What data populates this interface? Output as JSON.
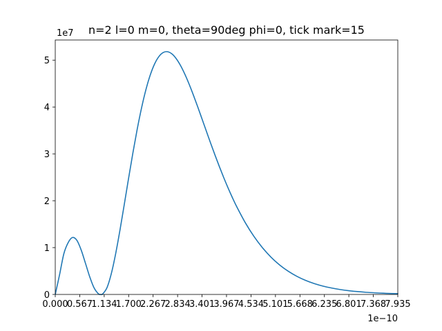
{
  "chart_data": {
    "type": "line",
    "title": "n=2 l=0 m=0, theta=90deg phi=0, tick mark=15",
    "xlabel": "",
    "ylabel": "",
    "x_offset_label": "1e−10",
    "y_offset_label": "1e7",
    "x_scale": 1e-10,
    "y_scale": 10000000.0,
    "xlim": [
      0.0,
      7.935
    ],
    "ylim": [
      0.0,
      5.43
    ],
    "x_ticks": [
      0.0,
      0.567,
      1.134,
      1.7,
      2.267,
      2.834,
      3.401,
      3.967,
      4.534,
      5.101,
      5.668,
      6.235,
      6.801,
      7.368,
      7.935
    ],
    "x_tick_labels": [
      "0.000",
      "0.567",
      "1.134",
      "1.700",
      "2.267",
      "2.834",
      "3.401",
      "3.967",
      "4.534",
      "5.101",
      "5.668",
      "6.235",
      "6.801",
      "7.368",
      "7.935"
    ],
    "y_ticks": [
      0,
      1,
      2,
      3,
      4,
      5
    ],
    "y_tick_labels": [
      "0",
      "1",
      "2",
      "3",
      "4",
      "5"
    ],
    "grid": false,
    "legend": "none",
    "series": [
      {
        "color": "#1f77b4",
        "x": [
          0.0,
          0.1,
          0.2,
          0.3,
          0.4,
          0.5,
          0.6,
          0.7,
          0.8,
          0.9,
          1.0,
          1.058,
          1.1,
          1.2,
          1.3,
          1.4,
          1.5,
          1.6,
          1.7,
          1.8,
          1.9,
          2.0,
          2.1,
          2.2,
          2.3,
          2.4,
          2.5,
          2.6,
          2.7,
          2.8,
          2.9,
          3.0,
          3.1,
          3.2,
          3.3,
          3.4,
          3.5,
          3.6,
          3.7,
          3.8,
          3.9,
          4.0,
          4.1,
          4.2,
          4.4,
          4.6,
          4.8,
          5.0,
          5.2,
          5.4,
          5.6,
          5.8,
          6.0,
          6.2,
          6.4,
          6.6,
          6.8,
          7.0,
          7.2,
          7.4,
          7.6,
          7.8,
          7.935
        ],
        "y": [
          0.0,
          0.421,
          0.872,
          1.108,
          1.216,
          1.156,
          0.95,
          0.665,
          0.373,
          0.139,
          0.014,
          0.0,
          0.012,
          0.148,
          0.449,
          0.872,
          1.377,
          1.926,
          2.485,
          3.028,
          3.533,
          3.984,
          4.369,
          4.681,
          4.917,
          5.076,
          5.162,
          5.18,
          5.135,
          5.035,
          4.889,
          4.704,
          4.49,
          4.254,
          4.004,
          3.745,
          3.485,
          3.227,
          2.975,
          2.732,
          2.5,
          2.28,
          2.073,
          1.88,
          1.535,
          1.242,
          0.997,
          0.794,
          0.628,
          0.494,
          0.386,
          0.3,
          0.232,
          0.179,
          0.138,
          0.105,
          0.08,
          0.061,
          0.046,
          0.035,
          0.026,
          0.02,
          0.017
        ]
      }
    ]
  }
}
